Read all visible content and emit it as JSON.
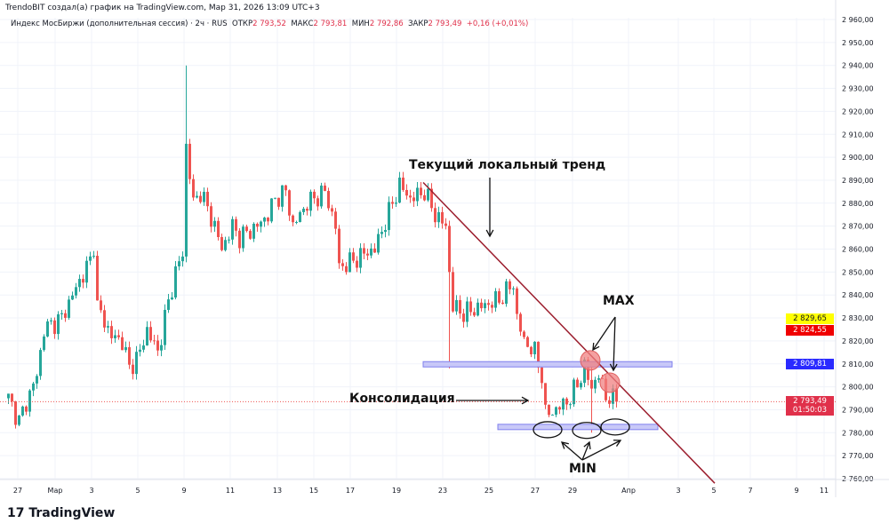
{
  "credit": "TrendoBIT создал(а) график на TradingView.com, Мар 31, 2026 13:09 UTC+3",
  "legend": {
    "symbol": "Индекс МосБиржи (дополнительная сессия) · 2ч · RUS",
    "open_label": "ОТКР",
    "open": "2 793,52",
    "high_label": "МАКС",
    "high": "2 793,81",
    "low_label": "МИН",
    "low": "2 792,86",
    "close_label": "ЗАКР",
    "close": "2 793,49",
    "change": "+0,16 (+0,01%)"
  },
  "price_labels": [
    {
      "text": "2 829,65",
      "bg": "#ffff00",
      "fg": "#131722",
      "price": 2829.65
    },
    {
      "text": "2 824,55",
      "bg": "#f00000",
      "fg": "#ffffff",
      "price": 2824.55
    },
    {
      "text": "2 809,81",
      "bg": "#2a2aff",
      "fg": "#ffffff",
      "price": 2809.81
    },
    {
      "text": "2 793,49",
      "sub": "01:50:03",
      "bg": "#e0304a",
      "fg": "#ffffff",
      "price": 2793.49
    }
  ],
  "annotations": {
    "trend": "Текущий локальный тренд",
    "consolidation": "Консолидация",
    "max": "MAX",
    "min": "MIN"
  },
  "logo": "TradingView",
  "colors": {
    "up": "#26a69a",
    "down": "#ef5350",
    "trendline": "#9b1c2c",
    "band": "#8080ee",
    "circle": "#f08080"
  },
  "chart_data": {
    "type": "candlestick",
    "title": "Индекс МосБиржи (дополнительная сессия) · 2ч",
    "ylim": [
      2760,
      2960
    ],
    "y_ticks": [
      2760,
      2770,
      2780,
      2790,
      2800,
      2810,
      2820,
      2830,
      2840,
      2850,
      2860,
      2870,
      2880,
      2890,
      2900,
      2910,
      2920,
      2930,
      2940,
      2950,
      2960
    ],
    "y_tick_labels": [
      "2 760,00",
      "2 770,00",
      "2 780,00",
      "2 790,00",
      "2 800,00",
      "2 810,00",
      "2 820,00",
      "2 830,00",
      "2 840,00",
      "2 850,00",
      "2 860,00",
      "2 870,00",
      "2 880,00",
      "2 890,00",
      "2 900,00",
      "2 910,00",
      "2 920,00",
      "2 930,00",
      "2 940,00",
      "2 950,00",
      "2 960,00"
    ],
    "x_tick_labels": [
      "27",
      "Мар",
      "3",
      "5",
      "9",
      "11",
      "13",
      "15",
      "17",
      "19",
      "23",
      "25",
      "27",
      "29",
      "Апр",
      "3",
      "5",
      "7",
      "9",
      "11"
    ],
    "close_path_bar_price": [
      [
        0,
        2795
      ],
      [
        3,
        2785
      ],
      [
        8,
        2805
      ],
      [
        10,
        2825
      ],
      [
        15,
        2830
      ],
      [
        18,
        2840
      ],
      [
        23,
        2855
      ],
      [
        24,
        2862
      ],
      [
        25,
        2835
      ],
      [
        29,
        2822
      ],
      [
        32,
        2820
      ],
      [
        34,
        2808
      ],
      [
        37,
        2815
      ],
      [
        39,
        2825
      ],
      [
        42,
        2815
      ],
      [
        44,
        2830
      ],
      [
        47,
        2850
      ],
      [
        49,
        2858
      ],
      [
        50,
        2905
      ],
      [
        52,
        2880
      ],
      [
        54,
        2885
      ],
      [
        58,
        2870
      ],
      [
        60,
        2860
      ],
      [
        63,
        2870
      ],
      [
        65,
        2865
      ],
      [
        70,
        2870
      ],
      [
        73,
        2875
      ],
      [
        75,
        2882
      ],
      [
        78,
        2885
      ],
      [
        80,
        2870
      ],
      [
        84,
        2880
      ],
      [
        89,
        2885
      ],
      [
        92,
        2870
      ],
      [
        93,
        2852
      ],
      [
        97,
        2855
      ],
      [
        100,
        2858
      ],
      [
        103,
        2860
      ],
      [
        108,
        2880
      ],
      [
        110,
        2888
      ],
      [
        113,
        2882
      ],
      [
        117,
        2885
      ],
      [
        120,
        2875
      ],
      [
        123,
        2870
      ],
      [
        124,
        2850
      ],
      [
        125,
        2835
      ],
      [
        128,
        2832
      ],
      [
        133,
        2835
      ],
      [
        138,
        2838
      ],
      [
        142,
        2845
      ],
      [
        143,
        2830
      ],
      [
        145,
        2820
      ],
      [
        148,
        2815
      ],
      [
        150,
        2805
      ],
      [
        151,
        2788
      ],
      [
        154,
        2790
      ],
      [
        158,
        2795
      ],
      [
        162,
        2808
      ],
      [
        164,
        2800
      ],
      [
        166,
        2805
      ],
      [
        168,
        2796
      ],
      [
        171,
        2793.49
      ]
    ],
    "spikes": [
      {
        "bar": 50,
        "high": 2940
      },
      {
        "bar": 124,
        "low": 2808
      },
      {
        "bar": 164,
        "high": 2811,
        "low": 2780
      }
    ],
    "last_price": 2793.49,
    "trendline": {
      "from": [
        117,
        2889
      ],
      "to": [
        199,
        2758
      ]
    },
    "resistance_band": {
      "price": 2809.81,
      "from": 117,
      "to": 187
    },
    "support_band": {
      "price": 2782.5,
      "from": 138,
      "to": 183
    },
    "max_markers": [
      [
        164,
        2811.5
      ],
      [
        169.5,
        2801.8
      ]
    ],
    "min_markers": [
      [
        152,
        2781.3
      ],
      [
        163,
        2781
      ],
      [
        171,
        2782.5
      ]
    ]
  }
}
